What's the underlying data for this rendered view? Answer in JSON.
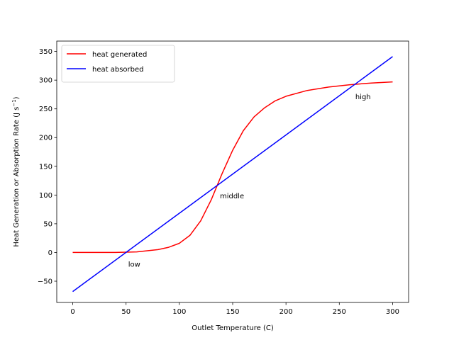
{
  "chart_data": {
    "type": "line",
    "xlabel": "Outlet Temperature (C)",
    "ylabel": "Heat Generation or Absorption Rate (J s",
    "ylabel_sup": "−1",
    "ylabel_close": ")",
    "xlim": [
      -15,
      315
    ],
    "ylim": [
      -87,
      368
    ],
    "xticks": [
      0,
      50,
      100,
      150,
      200,
      250,
      300
    ],
    "yticks": [
      -50,
      0,
      50,
      100,
      150,
      200,
      250,
      300,
      350
    ],
    "ytick_labels": [
      "−50",
      "0",
      "50",
      "100",
      "150",
      "200",
      "250",
      "300",
      "350"
    ],
    "legend_position": "top-left",
    "grid": false,
    "series": [
      {
        "name": "heat generated",
        "color": "#ff0000",
        "x": [
          0,
          20,
          40,
          60,
          80,
          90,
          100,
          110,
          120,
          130,
          140,
          150,
          160,
          170,
          180,
          190,
          200,
          220,
          240,
          260,
          280,
          300
        ],
        "y": [
          0,
          0,
          0,
          1,
          5,
          9,
          16,
          30,
          55,
          92,
          137,
          178,
          212,
          236,
          252,
          264,
          272,
          282,
          288,
          292,
          295,
          297
        ]
      },
      {
        "name": "heat absorbed",
        "color": "#0000ff",
        "x": [
          0,
          300
        ],
        "y": [
          -68,
          341
        ]
      }
    ],
    "annotations": [
      {
        "text": "low",
        "x": 52,
        "y": -20
      },
      {
        "text": "middle",
        "x": 138,
        "y": 99
      },
      {
        "text": "high",
        "x": 265,
        "y": 272
      }
    ]
  }
}
